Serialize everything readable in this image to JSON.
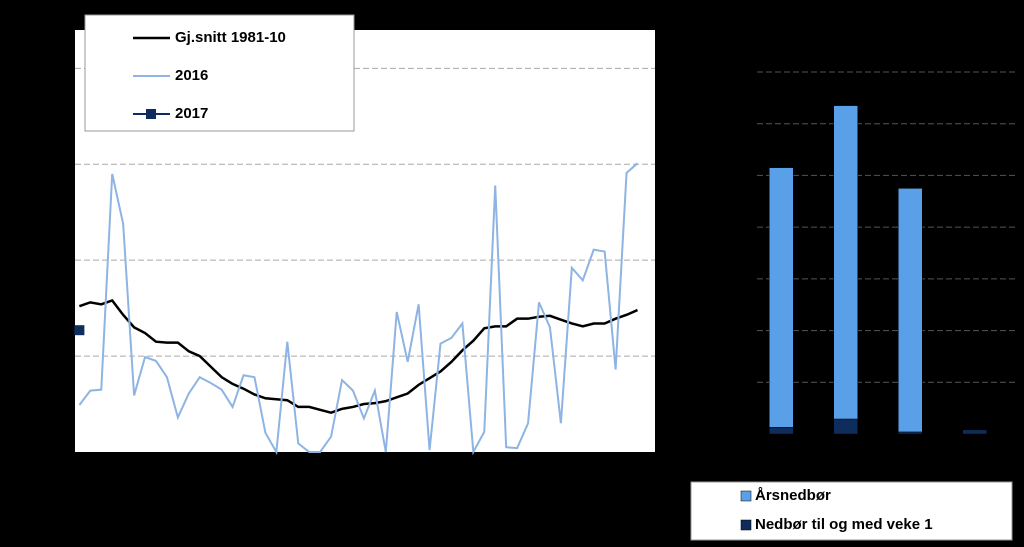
{
  "chart_data": [
    {
      "type": "line",
      "x": [
        1,
        2,
        3,
        4,
        5,
        6,
        7,
        8,
        9,
        10,
        11,
        12,
        13,
        14,
        15,
        16,
        17,
        18,
        19,
        20,
        21,
        22,
        23,
        24,
        25,
        26,
        27,
        28,
        29,
        30,
        31,
        32,
        33,
        34,
        35,
        36,
        37,
        38,
        39,
        40,
        41,
        42,
        43,
        44,
        45,
        46,
        47,
        48,
        49,
        50,
        51,
        52
      ],
      "series": [
        {
          "name": "Gj.snitt 1981-10",
          "color": "#000000",
          "values": [
            15.2,
            15.6,
            15.4,
            15.8,
            14.3,
            13.0,
            12.4,
            11.5,
            11.4,
            11.4,
            10.5,
            10.0,
            8.9,
            7.8,
            7.1,
            6.6,
            6.0,
            5.6,
            5.5,
            5.4,
            4.7,
            4.7,
            4.4,
            4.1,
            4.5,
            4.7,
            5.0,
            5.1,
            5.3,
            5.7,
            6.1,
            7.0,
            7.7,
            8.4,
            9.4,
            10.6,
            11.6,
            12.9,
            13.1,
            13.1,
            13.9,
            13.9,
            14.1,
            14.2,
            13.8,
            13.4,
            13.1,
            13.4,
            13.4,
            13.9,
            14.3,
            14.8
          ]
        },
        {
          "name": "2016",
          "color": "#8db4e2",
          "values": [
            4.9,
            6.4,
            6.5,
            29.0,
            23.8,
            5.9,
            9.9,
            9.5,
            7.8,
            3.6,
            6.1,
            7.8,
            7.2,
            6.5,
            4.7,
            8.0,
            7.8,
            2.0,
            0,
            11.5,
            0.9,
            0,
            0,
            1.6,
            7.5,
            6.4,
            3.5,
            6.4,
            0,
            14.6,
            9.4,
            15.4,
            0.2,
            11.3,
            11.9,
            13.4,
            0,
            2.1,
            27.8,
            0.5,
            0.4,
            3.0,
            15.6,
            13.0,
            3.0,
            19.2,
            17.9,
            21.1,
            20.9,
            8.6,
            29.1,
            30.1
          ]
        },
        {
          "name": "2017",
          "color": "#0f2d5c",
          "values": [
            12.7,
            null,
            null,
            null,
            null,
            null,
            null,
            null,
            null,
            null,
            null,
            null,
            null,
            null,
            null,
            null,
            null,
            null,
            null,
            null,
            null,
            null,
            null,
            null,
            null,
            null,
            null,
            null,
            null,
            null,
            null,
            null,
            null,
            null,
            null,
            null,
            null,
            null,
            null,
            null,
            null,
            null,
            null,
            null,
            null,
            null,
            null,
            null,
            null,
            null,
            null,
            null
          ]
        }
      ],
      "xlim": [
        0.6,
        53.6
      ],
      "ylim": [
        0,
        44
      ],
      "yticks": [
        0,
        10,
        20,
        30,
        40
      ],
      "grid": true
    },
    {
      "type": "bar",
      "categories": [
        null,
        null,
        null,
        null
      ],
      "series": [
        {
          "name": "Årsnedbør",
          "color": "#5aa0e8",
          "values": [
            515,
            635,
            475,
            null
          ]
        },
        {
          "name": "Nedbør til og med veke 1",
          "color": "#0f2d5c",
          "values": [
            13,
            29,
            4,
            8
          ]
        }
      ],
      "ylim": [
        0,
        700
      ],
      "yticks": [
        0,
        100,
        200,
        300,
        400,
        500,
        600,
        700
      ],
      "grid": true
    }
  ]
}
